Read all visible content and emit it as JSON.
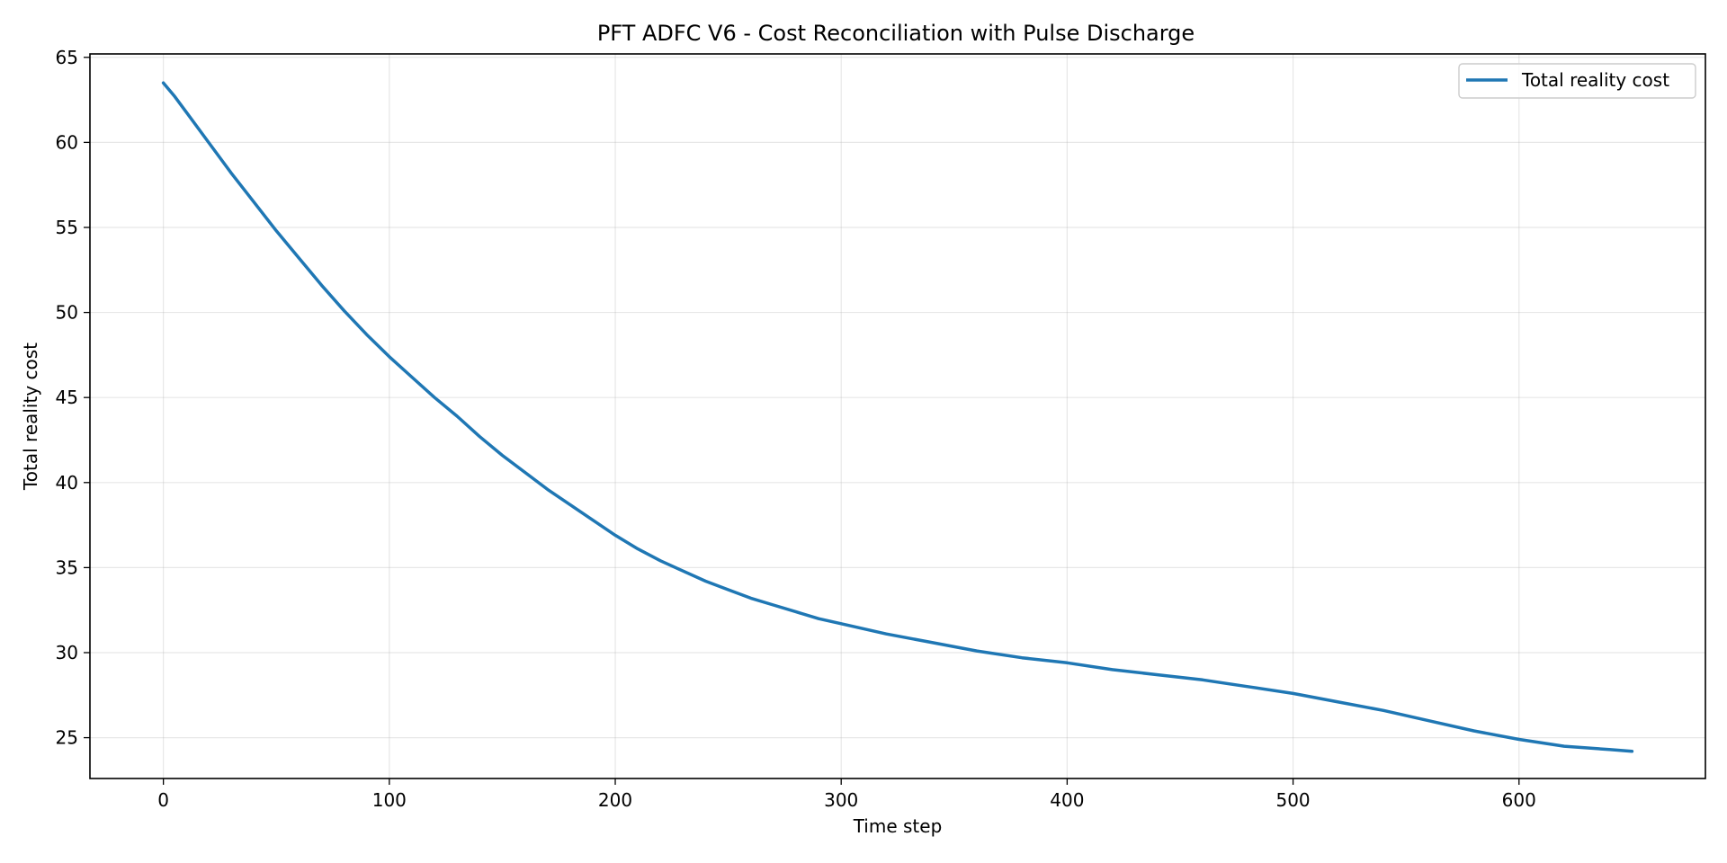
{
  "chart_data": {
    "type": "line",
    "title": "PFT ADFC V6 - Cost Reconciliation with Pulse Discharge",
    "xlabel": "Time step",
    "ylabel": "Total reality cost",
    "xlim": [
      -32.5,
      682.5
    ],
    "ylim": [
      22.6,
      65.2
    ],
    "xticks": [
      0,
      100,
      200,
      300,
      400,
      500,
      600
    ],
    "yticks": [
      25,
      30,
      35,
      40,
      45,
      50,
      55,
      60,
      65
    ],
    "grid": true,
    "legend_position": "top-right",
    "series": [
      {
        "name": "Total reality cost",
        "color": "#1f77b4",
        "x": [
          0,
          5,
          10,
          20,
          30,
          40,
          50,
          60,
          70,
          80,
          90,
          100,
          110,
          120,
          130,
          140,
          150,
          160,
          170,
          180,
          190,
          200,
          210,
          220,
          230,
          240,
          250,
          260,
          270,
          280,
          290,
          300,
          320,
          340,
          360,
          380,
          400,
          420,
          440,
          460,
          480,
          500,
          520,
          540,
          560,
          580,
          600,
          620,
          640,
          650
        ],
        "y": [
          63.5,
          62.7,
          61.8,
          60.0,
          58.2,
          56.5,
          54.8,
          53.2,
          51.6,
          50.1,
          48.7,
          47.4,
          46.2,
          45.0,
          43.9,
          42.7,
          41.6,
          40.6,
          39.6,
          38.7,
          37.8,
          36.9,
          36.1,
          35.4,
          34.8,
          34.2,
          33.7,
          33.2,
          32.8,
          32.4,
          32.0,
          31.7,
          31.1,
          30.6,
          30.1,
          29.7,
          29.4,
          29.0,
          28.7,
          28.4,
          28.0,
          27.6,
          27.1,
          26.6,
          26.0,
          25.4,
          24.9,
          24.5,
          24.3,
          24.2
        ]
      }
    ]
  }
}
